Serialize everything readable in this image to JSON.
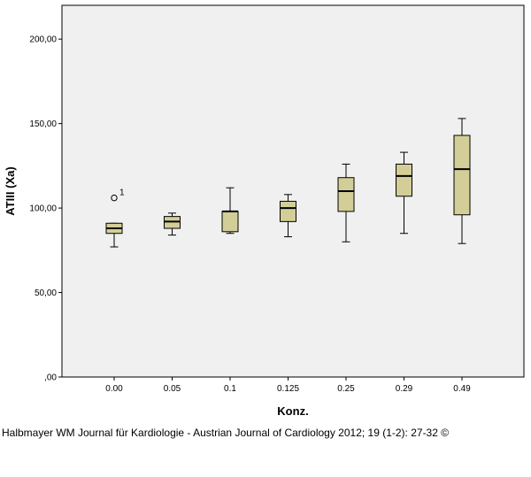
{
  "chart_data": {
    "type": "boxplot",
    "xlabel": "Konz.",
    "ylabel": "ATIII (Xa)",
    "ylim": [
      0,
      220
    ],
    "yticks": [
      {
        "value": 0,
        "label": ",00"
      },
      {
        "value": 50,
        "label": "50,00"
      },
      {
        "value": 100,
        "label": "100,00"
      },
      {
        "value": 150,
        "label": "150,00"
      },
      {
        "value": 200,
        "label": "200,00"
      }
    ],
    "categories": [
      "0.00",
      "0.05",
      "0.1",
      "0.125",
      "0.25",
      "0.29",
      "0.49"
    ],
    "boxes": [
      {
        "min": 77,
        "q1": 85,
        "median": 88,
        "q3": 91,
        "max": 91,
        "outliers": [
          {
            "value": 106,
            "label": "1"
          }
        ]
      },
      {
        "min": 84,
        "q1": 88,
        "median": 92,
        "q3": 95,
        "max": 97,
        "outliers": []
      },
      {
        "min": 85,
        "q1": 86,
        "median": 98,
        "q3": 98,
        "max": 112,
        "outliers": []
      },
      {
        "min": 83,
        "q1": 92,
        "median": 100,
        "q3": 104,
        "max": 108,
        "outliers": []
      },
      {
        "min": 80,
        "q1": 98,
        "median": 110,
        "q3": 118,
        "max": 126,
        "outliers": []
      },
      {
        "min": 85,
        "q1": 107,
        "median": 119,
        "q3": 126,
        "max": 133,
        "outliers": []
      },
      {
        "min": 79,
        "q1": 96,
        "median": 123,
        "q3": 143,
        "max": 153,
        "outliers": []
      }
    ],
    "colors": {
      "plot_bg": "#f0f0f0",
      "box_fill": "#d3ce97",
      "box_stroke": "#000000"
    },
    "grid": false
  },
  "citation": "Halbmayer WM Journal für Kardiologie - Austrian Journal of Cardiology 2012; 19 (1-2): 27-32 ©"
}
